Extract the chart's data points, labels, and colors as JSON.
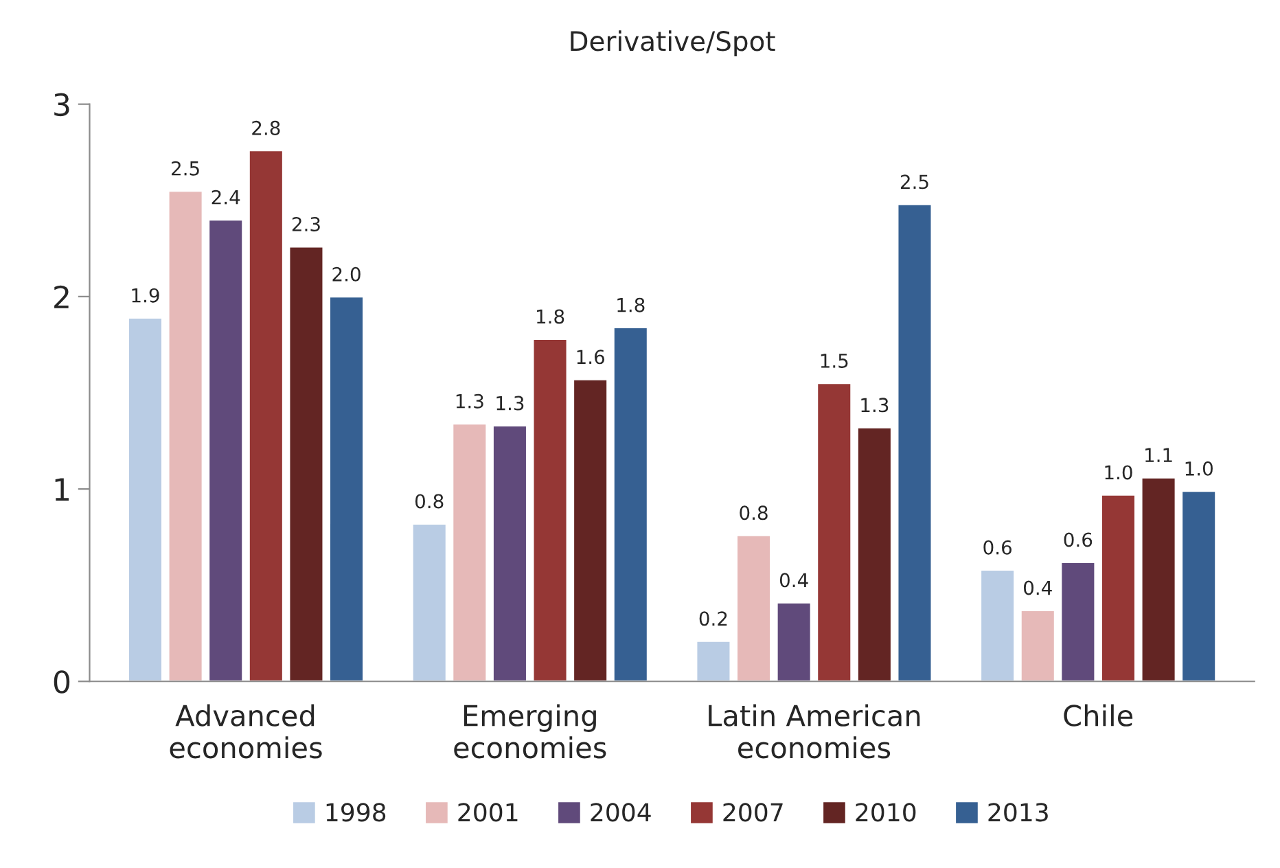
{
  "chart_data": {
    "type": "bar",
    "title": "Derivative/Spot",
    "categories": [
      "Advanced\neconomies",
      "Emerging\neconomies",
      "Latin American\neconomies",
      "Chile"
    ],
    "series": [
      {
        "name": "1998",
        "color": "#b9cce4",
        "values": [
          1.89,
          0.82,
          0.21,
          0.58
        ],
        "value_labels": [
          "1.9",
          "0.8",
          "0.2",
          "0.6"
        ]
      },
      {
        "name": "2001",
        "color": "#e6b9b8",
        "values": [
          2.55,
          1.34,
          0.76,
          0.37
        ],
        "value_labels": [
          "2.5",
          "1.3",
          "0.8",
          "0.4"
        ]
      },
      {
        "name": "2004",
        "color": "#604a7b",
        "values": [
          2.4,
          1.33,
          0.41,
          0.62
        ],
        "value_labels": [
          "2.4",
          "1.3",
          "0.4",
          "0.6"
        ]
      },
      {
        "name": "2007",
        "color": "#953735",
        "values": [
          2.76,
          1.78,
          1.55,
          0.97
        ],
        "value_labels": [
          "2.8",
          "1.8",
          "1.5",
          "1.0"
        ]
      },
      {
        "name": "2010",
        "color": "#632523",
        "values": [
          2.26,
          1.57,
          1.32,
          1.06
        ],
        "value_labels": [
          "2.3",
          "1.6",
          "1.3",
          "1.1"
        ]
      },
      {
        "name": "2013",
        "color": "#366092",
        "values": [
          2.0,
          1.84,
          2.48,
          0.99
        ],
        "value_labels": [
          "2.0",
          "1.8",
          "2.5",
          "1.0"
        ]
      }
    ],
    "ylim": [
      0,
      3
    ],
    "yticks": [
      0,
      1,
      2,
      3
    ],
    "grid": false,
    "legend": "bottom"
  }
}
